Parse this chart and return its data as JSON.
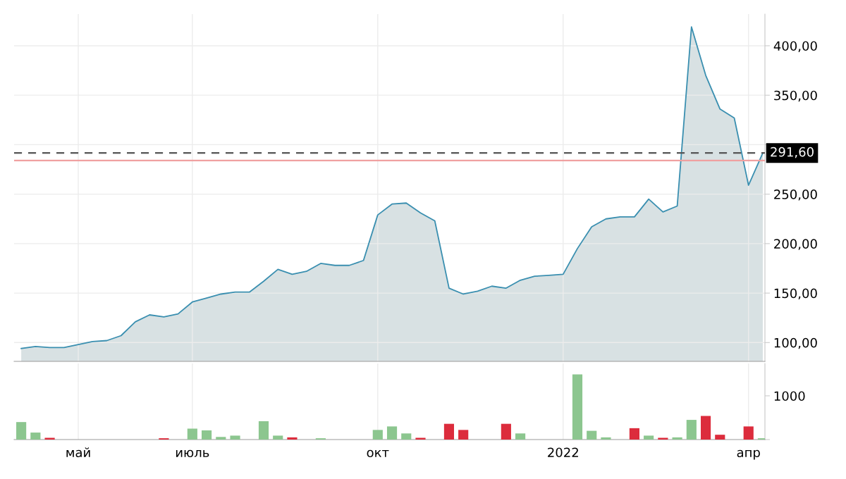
{
  "chart_data": [
    {
      "type": "area",
      "categories": [
        null,
        null,
        null,
        null,
        null,
        null,
        null,
        null,
        null,
        null,
        null,
        null,
        null,
        null,
        null,
        null,
        null,
        null,
        null,
        null,
        null,
        null,
        null,
        null,
        null,
        null,
        null,
        null,
        null,
        null,
        null,
        null,
        null,
        null,
        null,
        null,
        null,
        null,
        null,
        null,
        null,
        null,
        null,
        null,
        null,
        null,
        null,
        null,
        null,
        null,
        null,
        null,
        null
      ],
      "series": [
        {
          "color": "#3a8fb0",
          "values": [
            94,
            96,
            95,
            95,
            98,
            101,
            102,
            107,
            121,
            128,
            126,
            129,
            141,
            145,
            149,
            151,
            151,
            162,
            174,
            169,
            172,
            180,
            178,
            178,
            183,
            229,
            240,
            241,
            231,
            223,
            155,
            149,
            152,
            157,
            155,
            163,
            167,
            168,
            169,
            195,
            217,
            225,
            227,
            227,
            245,
            232,
            238,
            419,
            370,
            336,
            327,
            259,
            291.6
          ]
        }
      ],
      "ylim": [
        81,
        432
      ],
      "yticks": [
        {
          "value": 100,
          "label": "100,00"
        },
        {
          "value": 150,
          "label": "150,00"
        },
        {
          "value": 200,
          "label": "200,00"
        },
        {
          "value": 250,
          "label": "250,00"
        },
        {
          "value": 300,
          "label": null
        },
        {
          "value": 350,
          "label": "350,00"
        },
        {
          "value": 400,
          "label": "400,00"
        }
      ],
      "grid": true,
      "ref_lines": [
        {
          "axis": "y",
          "value": 291.6,
          "label": "291,60",
          "color": "#555555",
          "line_style": "dashed"
        },
        {
          "axis": "y",
          "value": 284,
          "color": "#f0a0a0",
          "line_style": "solid"
        }
      ]
    },
    {
      "type": "bar",
      "categories": [
        null,
        null,
        null,
        null,
        "май",
        null,
        null,
        null,
        null,
        null,
        null,
        null,
        "июль",
        null,
        null,
        null,
        null,
        null,
        null,
        null,
        null,
        null,
        null,
        null,
        null,
        "окт",
        null,
        null,
        null,
        null,
        null,
        null,
        null,
        null,
        null,
        null,
        null,
        null,
        "2022",
        null,
        null,
        null,
        null,
        null,
        null,
        null,
        null,
        null,
        null,
        null,
        null,
        "апр",
        null
      ],
      "values": [
        400,
        160,
        40,
        null,
        null,
        null,
        null,
        null,
        null,
        null,
        30,
        null,
        250,
        210,
        60,
        90,
        null,
        420,
        90,
        50,
        null,
        30,
        null,
        null,
        null,
        220,
        300,
        140,
        40,
        null,
        360,
        220,
        null,
        null,
        360,
        140,
        null,
        null,
        null,
        1490,
        200,
        50,
        null,
        260,
        90,
        40,
        50,
        450,
        540,
        110,
        null,
        300,
        30
      ],
      "colors": [
        "#8cc68f",
        "#8cc68f",
        "#dc2c3c",
        "#8cc68f",
        "#8cc68f",
        "#8cc68f",
        "#8cc68f",
        "#8cc68f",
        "#8cc68f",
        "#8cc68f",
        "#dc2c3c",
        "#8cc68f",
        "#8cc68f",
        "#8cc68f",
        "#8cc68f",
        "#8cc68f",
        "#8cc68f",
        "#8cc68f",
        "#8cc68f",
        "#dc2c3c",
        "#8cc68f",
        "#8cc68f",
        "#8cc68f",
        "#8cc68f",
        "#8cc68f",
        "#8cc68f",
        "#8cc68f",
        "#8cc68f",
        "#dc2c3c",
        "#8cc68f",
        "#dc2c3c",
        "#dc2c3c",
        "#8cc68f",
        "#8cc68f",
        "#dc2c3c",
        "#8cc68f",
        "#8cc68f",
        "#8cc68f",
        "#8cc68f",
        "#8cc68f",
        "#8cc68f",
        "#8cc68f",
        "#8cc68f",
        "#dc2c3c",
        "#8cc68f",
        "#dc2c3c",
        "#8cc68f",
        "#8cc68f",
        "#dc2c3c",
        "#dc2c3c",
        "#8cc68f",
        "#dc2c3c",
        "#8cc68f"
      ],
      "ylim": [
        0,
        1740
      ],
      "yticks": [
        {
          "value": 0,
          "label": null
        },
        1000
      ],
      "grid": "x"
    }
  ]
}
